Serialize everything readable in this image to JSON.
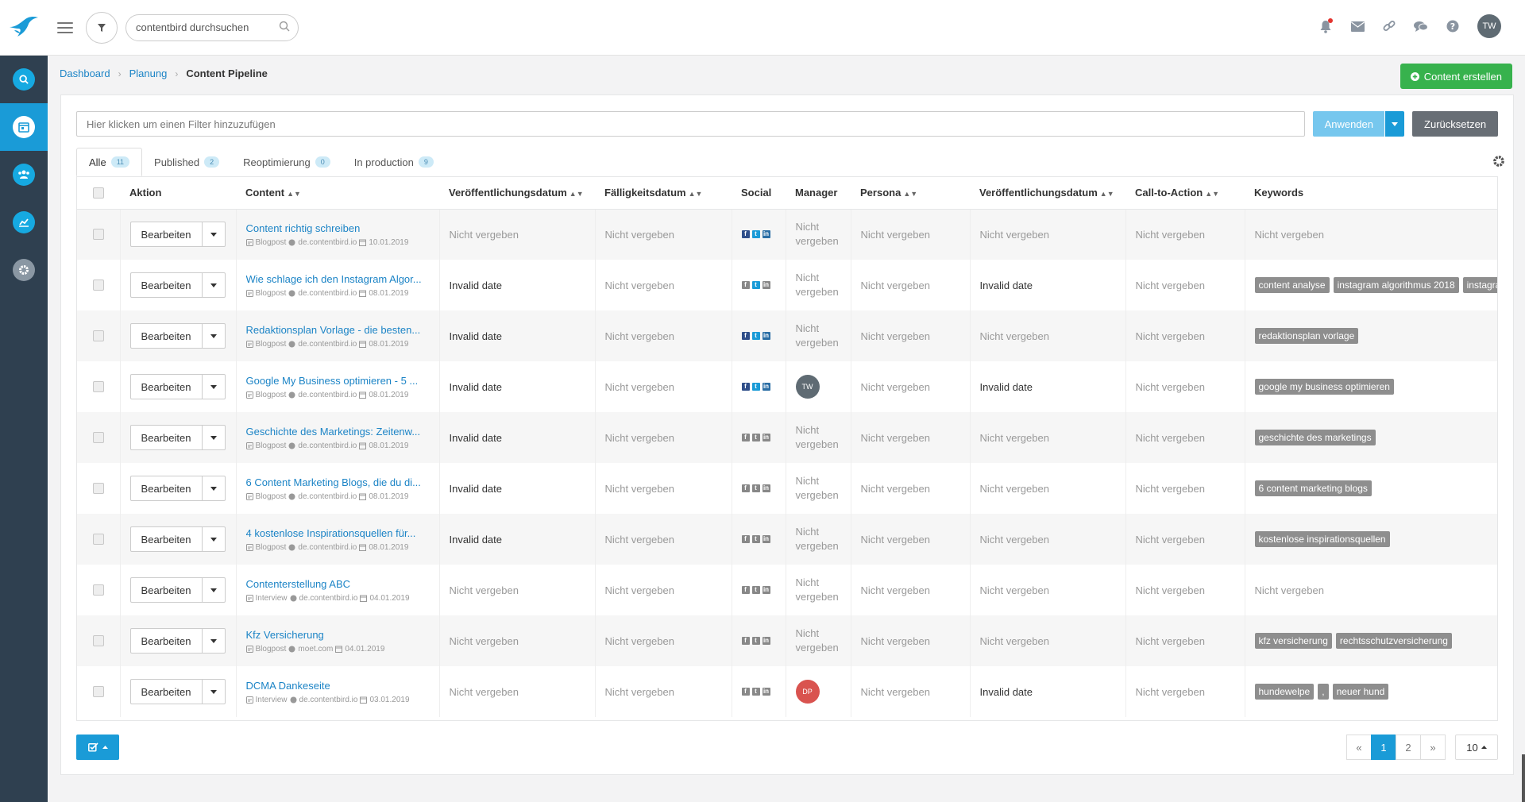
{
  "header": {
    "search_placeholder": "contentbird durchsuchen",
    "user_initials": "TW"
  },
  "breadcrumb": {
    "items": [
      "Dashboard",
      "Planung"
    ],
    "current": "Content Pipeline"
  },
  "actions": {
    "create_label": "Content erstellen"
  },
  "filter": {
    "placeholder": "Hier klicken um einen Filter hinzuzufügen",
    "apply_label": "Anwenden",
    "reset_label": "Zurücksetzen"
  },
  "tabs": [
    {
      "label": "Alle",
      "count": "11",
      "active": true
    },
    {
      "label": "Published",
      "count": "2"
    },
    {
      "label": "Reoptimierung",
      "count": "0"
    },
    {
      "label": "In production",
      "count": "9"
    }
  ],
  "table": {
    "headers": [
      "Aktion",
      "Content",
      "Veröffentlichungsdatum",
      "Fälligkeitsdatum",
      "Social",
      "Manager",
      "Persona",
      "Veröffentlichungsdatum",
      "Call-to-Action",
      "Keywords"
    ],
    "edit_label": "Bearbeiten",
    "rows": [
      {
        "title": "Content richtig schreiben",
        "type": "Blogpost",
        "domain": "de.contentbird.io",
        "date": "10.01.2019",
        "pub": "Nicht vergeben",
        "due": "Nicht vergeben",
        "social": "fb,tw,li",
        "manager": "Nicht vergeben",
        "persona": "Nicht vergeben",
        "pub2": "Nicht vergeben",
        "cta": "Nicht vergeben",
        "keywords": [],
        "kw_text": "Nicht vergeben"
      },
      {
        "title": "Wie schlage ich den Instagram Algor...",
        "type": "Blogpost",
        "domain": "de.contentbird.io",
        "date": "08.01.2019",
        "pub": "Invalid date",
        "due": "Nicht vergeben",
        "social": "tw",
        "manager": "Nicht vergeben",
        "persona": "Nicht vergeben",
        "pub2": "Invalid date",
        "cta": "Nicht vergeben",
        "keywords": [
          "content analyse",
          "instagram algorithmus 2018",
          "instagram"
        ]
      },
      {
        "title": "Redaktionsplan Vorlage - die besten...",
        "type": "Blogpost",
        "domain": "de.contentbird.io",
        "date": "08.01.2019",
        "pub": "Invalid date",
        "due": "Nicht vergeben",
        "social": "fb,tw,li",
        "manager": "Nicht vergeben",
        "persona": "Nicht vergeben",
        "pub2": "Nicht vergeben",
        "cta": "Nicht vergeben",
        "keywords": [
          "redaktionsplan vorlage"
        ]
      },
      {
        "title": "Google My Business optimieren - 5 ...",
        "type": "Blogpost",
        "domain": "de.contentbird.io",
        "date": "08.01.2019",
        "pub": "Invalid date",
        "due": "Nicht vergeben",
        "social": "fb,tw,li",
        "manager_avatar": "TW",
        "manager_color": "#5f6b73",
        "persona": "Nicht vergeben",
        "pub2": "Invalid date",
        "cta": "Nicht vergeben",
        "keywords": [
          "google my business optimieren"
        ]
      },
      {
        "title": "Geschichte des Marketings: Zeitenw...",
        "type": "Blogpost",
        "domain": "de.contentbird.io",
        "date": "08.01.2019",
        "pub": "Invalid date",
        "due": "Nicht vergeben",
        "social": "",
        "manager": "Nicht vergeben",
        "persona": "Nicht vergeben",
        "pub2": "Nicht vergeben",
        "cta": "Nicht vergeben",
        "keywords": [
          "geschichte des marketings"
        ]
      },
      {
        "title": "6 Content Marketing Blogs, die du di...",
        "type": "Blogpost",
        "domain": "de.contentbird.io",
        "date": "08.01.2019",
        "pub": "Invalid date",
        "due": "Nicht vergeben",
        "social": "",
        "manager": "Nicht vergeben",
        "persona": "Nicht vergeben",
        "pub2": "Nicht vergeben",
        "cta": "Nicht vergeben",
        "keywords": [
          "6 content marketing blogs"
        ]
      },
      {
        "title": "4 kostenlose Inspirationsquellen für...",
        "type": "Blogpost",
        "domain": "de.contentbird.io",
        "date": "08.01.2019",
        "pub": "Invalid date",
        "due": "Nicht vergeben",
        "social": "",
        "manager": "Nicht vergeben",
        "persona": "Nicht vergeben",
        "pub2": "Nicht vergeben",
        "cta": "Nicht vergeben",
        "keywords": [
          "kostenlose inspirationsquellen"
        ]
      },
      {
        "title": "Contenterstellung ABC",
        "type": "Interview",
        "domain": "de.contentbird.io",
        "date": "04.01.2019",
        "pub": "Nicht vergeben",
        "due": "Nicht vergeben",
        "social": "",
        "manager": "Nicht vergeben",
        "persona": "Nicht vergeben",
        "pub2": "Nicht vergeben",
        "cta": "Nicht vergeben",
        "keywords": [],
        "kw_text": "Nicht vergeben"
      },
      {
        "title": "Kfz Versicherung",
        "type": "Blogpost",
        "domain": "moet.com",
        "date": "04.01.2019",
        "pub": "Nicht vergeben",
        "due": "Nicht vergeben",
        "social": "",
        "manager": "Nicht vergeben",
        "persona": "Nicht vergeben",
        "pub2": "Nicht vergeben",
        "cta": "Nicht vergeben",
        "keywords": [
          "kfz versicherung",
          "rechtsschutzversicherung"
        ]
      },
      {
        "title": "DCMA Dankeseite",
        "type": "Interview",
        "domain": "de.contentbird.io",
        "date": "03.01.2019",
        "pub": "Nicht vergeben",
        "due": "Nicht vergeben",
        "social": "",
        "manager_avatar": "DP",
        "manager_color": "#d9534f",
        "persona": "Nicht vergeben",
        "pub2": "Invalid date",
        "cta": "Nicht vergeben",
        "keywords": [
          "hundewelpe",
          ",",
          "neuer hund"
        ]
      }
    ]
  },
  "pagination": {
    "prev": "«",
    "pages": [
      "1",
      "2"
    ],
    "current": "1",
    "next": "»",
    "page_size": "10"
  },
  "colors": {
    "accent": "#1a9bd7",
    "sidebar": "#2f4050",
    "success": "#37b24d",
    "link": "#1c84c6"
  }
}
